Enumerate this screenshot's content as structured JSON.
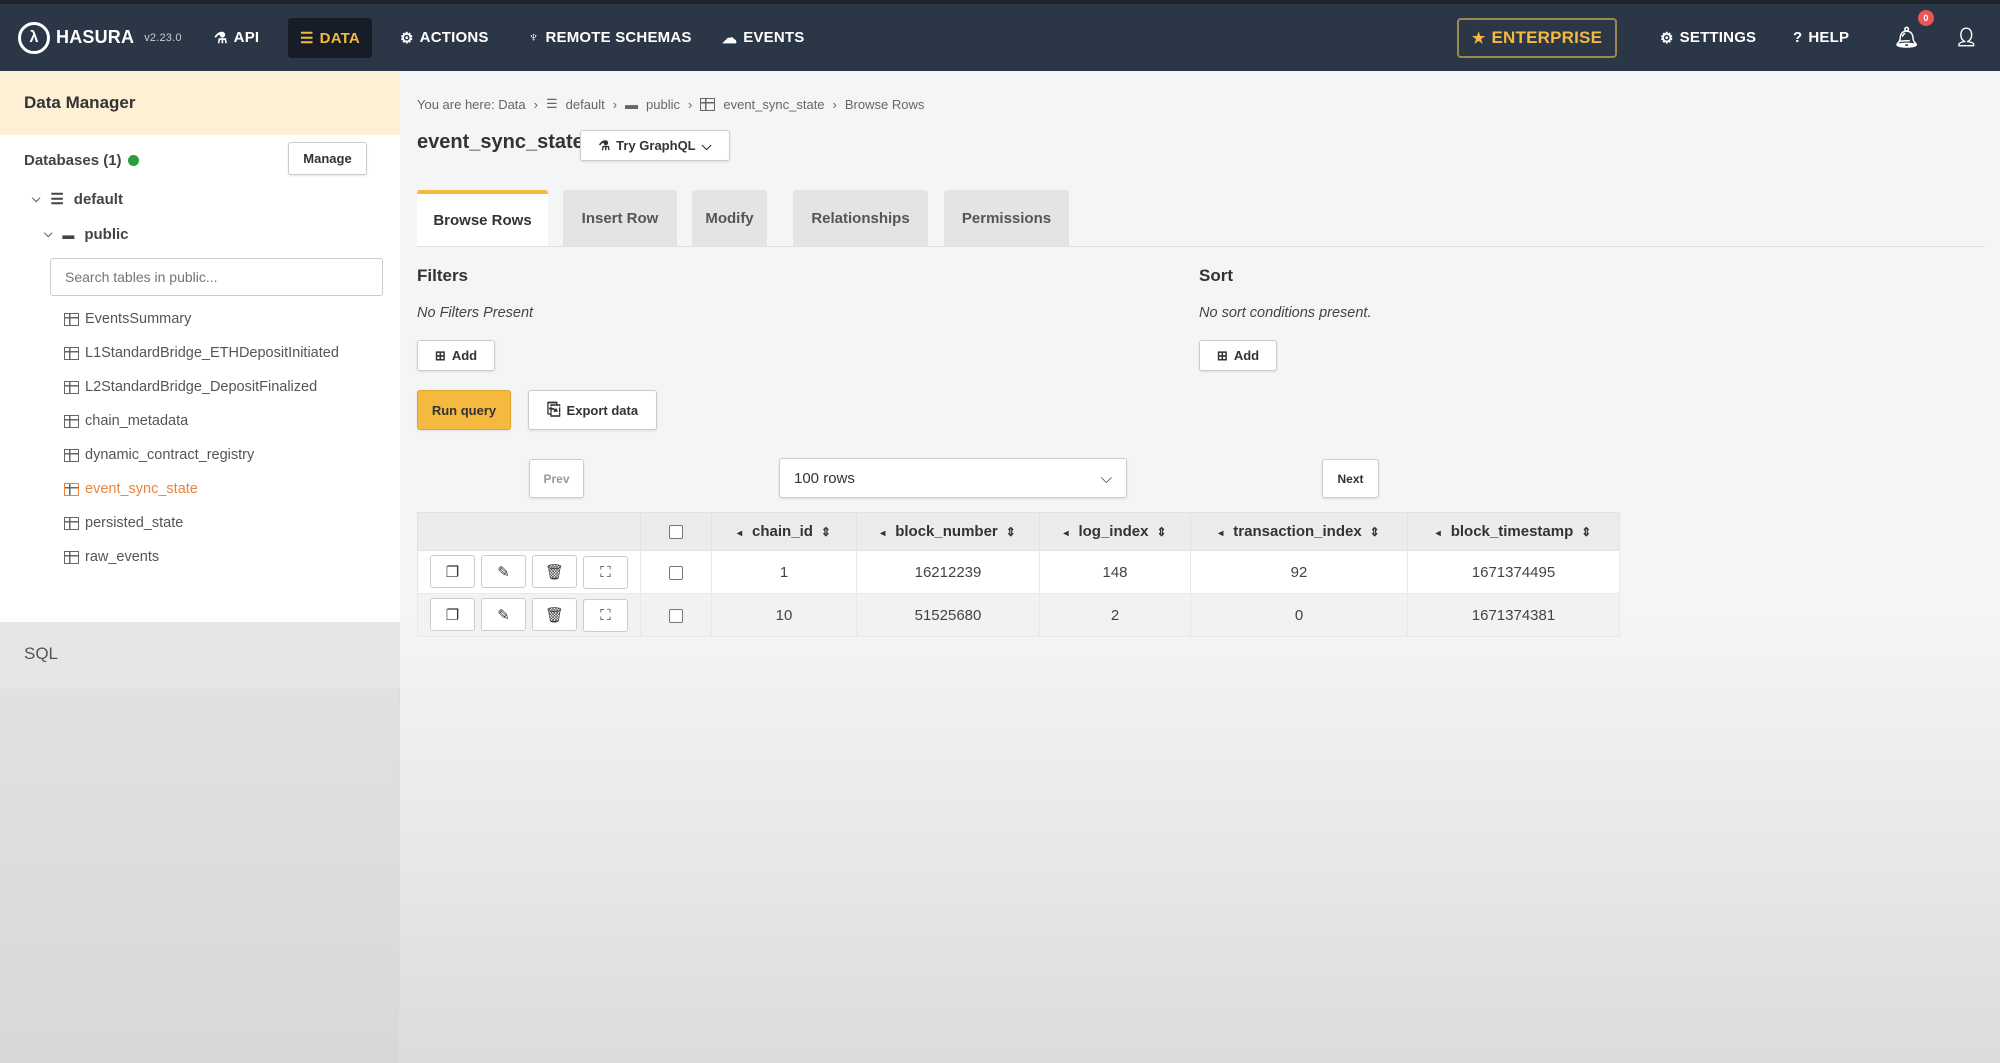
{
  "nav": {
    "brand": "HASURA",
    "version": "v2.23.0",
    "items": [
      {
        "label": "API",
        "icon": "flask-icon"
      },
      {
        "label": "DATA",
        "icon": "database-icon"
      },
      {
        "label": "ACTIONS",
        "icon": "actions-icon"
      },
      {
        "label": "REMOTE SCHEMAS",
        "icon": "plug-icon"
      },
      {
        "label": "EVENTS",
        "icon": "cloud-icon"
      }
    ],
    "enterprise": "ENTERPRISE",
    "settings": "SETTINGS",
    "help": "HELP",
    "notification_count": "0"
  },
  "colors": {
    "accent": "#f5b940",
    "nav_bg": "#2b3646"
  },
  "sidebar": {
    "title": "Data Manager",
    "databases": "Databases (1)",
    "manage": "Manage",
    "db": "default",
    "schema": "public",
    "search_placeholder": "Search tables in public...",
    "tables": [
      "EventsSummary",
      "L1StandardBridge_ETHDepositInitiated",
      "L2StandardBridge_DepositFinalized",
      "chain_metadata",
      "dynamic_contract_registry",
      "event_sync_state",
      "persisted_state",
      "raw_events"
    ],
    "active_table": "event_sync_state",
    "sql": "SQL"
  },
  "main": {
    "breadcrumb": [
      "You are here: Data",
      "default",
      "public",
      "event_sync_state",
      "Browse Rows"
    ],
    "title": "event_sync_state",
    "try_graphql": "Try GraphQL",
    "tabs": [
      "Browse Rows",
      "Insert Row",
      "Modify",
      "Relationships",
      "Permissions"
    ],
    "filters": {
      "title": "Filters",
      "empty": "No Filters Present",
      "add": "Add"
    },
    "sort": {
      "title": "Sort",
      "empty": "No sort conditions present.",
      "add": "Add"
    },
    "run_query": "Run query",
    "export": "Export data",
    "prev": "Prev",
    "next": "Next",
    "rows": "100 rows"
  },
  "table": {
    "columns": [
      "chain_id",
      "block_number",
      "log_index",
      "transaction_index",
      "block_timestamp"
    ],
    "rows": [
      [
        "1",
        "16212239",
        "148",
        "92",
        "1671374495"
      ],
      [
        "10",
        "51525680",
        "2",
        "0",
        "1671374381"
      ]
    ]
  }
}
